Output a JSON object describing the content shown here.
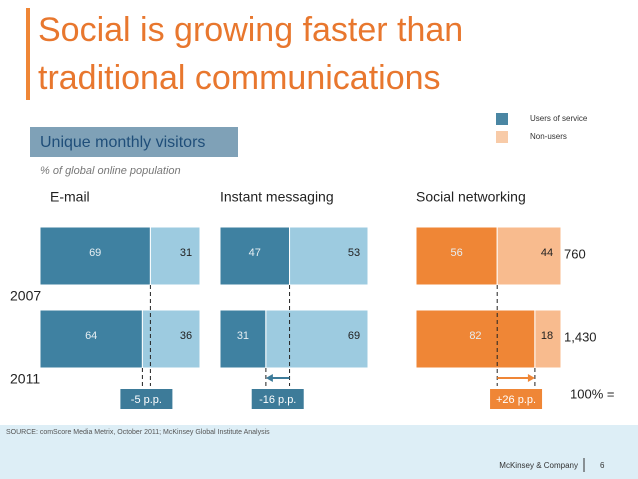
{
  "title_lines": [
    "Social is growing faster than",
    "traditional communications"
  ],
  "subtitle": "Unique monthly visitors",
  "note": "% of global online population",
  "source": "SOURCE: comScore Media Metrix, October 2011; McKinsey Global Institute Analysis",
  "footer": {
    "company": "McKinsey & Company",
    "page": 6
  },
  "chart_data": {
    "type": "bar",
    "orientation": "horizontal",
    "stacked": true,
    "categories": [
      "2007",
      "2011"
    ],
    "series": [
      {
        "name": "Users of service",
        "color": "#4a86a3"
      },
      {
        "name": "Non-users",
        "color": "#f8cba8"
      }
    ],
    "panels": [
      {
        "title": "E-mail",
        "colors": [
          "#3f81a1",
          "#9dcbe0"
        ],
        "values": [
          [
            69,
            31
          ],
          [
            64,
            36
          ]
        ],
        "change": "-5 p.p.",
        "change_color": "#3d7b99"
      },
      {
        "title": "Instant messaging",
        "colors": [
          "#3f81a1",
          "#9dcbe0"
        ],
        "values": [
          [
            47,
            53
          ],
          [
            31,
            69
          ]
        ],
        "change": "-16 p.p.",
        "change_color": "#3d7b99"
      },
      {
        "title": "Social networking",
        "colors": [
          "#ef8636",
          "#f8bb8e"
        ],
        "values": [
          [
            56,
            44
          ],
          [
            82,
            18
          ]
        ],
        "change": "+26 p.p.",
        "change_color": "#ef8636"
      }
    ],
    "totals": {
      "label": "100% =",
      "values": [
        760,
        1430
      ],
      "value_labels": [
        "760",
        "1,430"
      ]
    }
  }
}
